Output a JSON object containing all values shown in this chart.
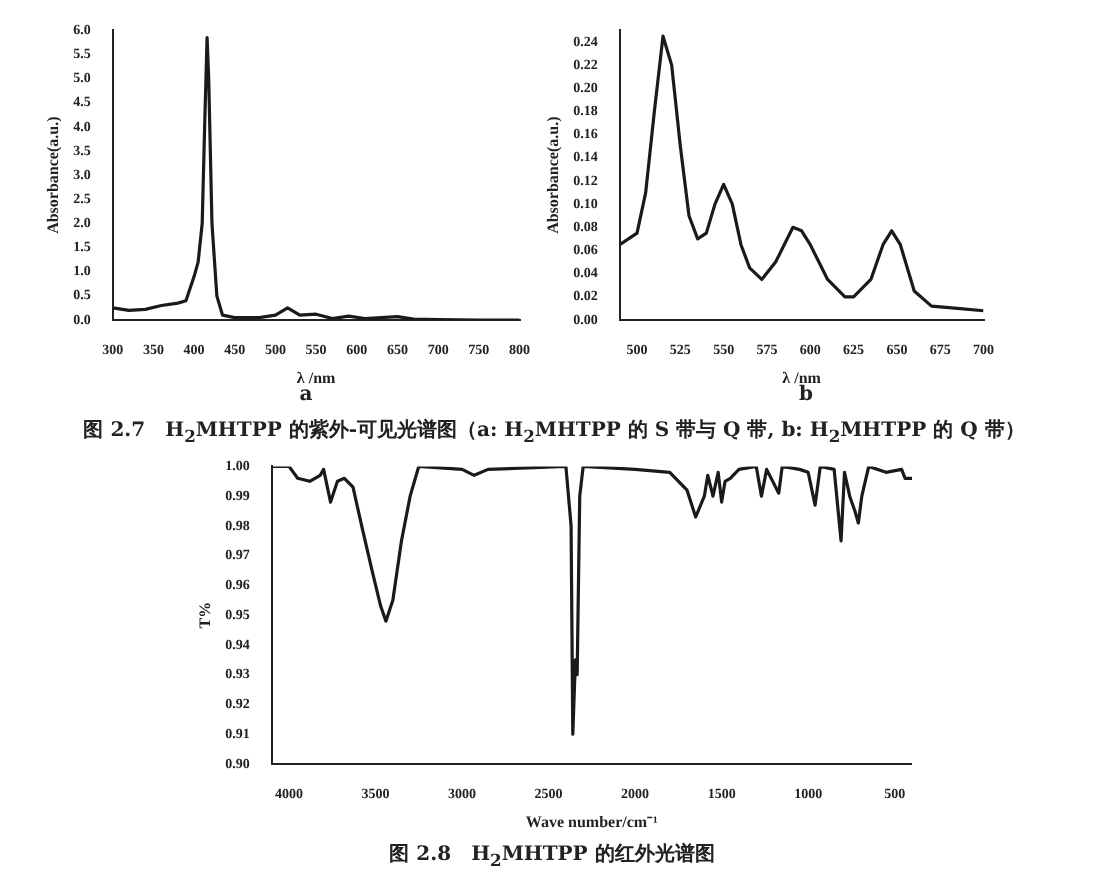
{
  "chart_data": [
    {
      "type": "line",
      "xlabel": "λ /nm",
      "ylabel": "Absorbance(a.u.)",
      "color": "#1a1a1a",
      "x": [
        300,
        320,
        340,
        360,
        380,
        390,
        400,
        405,
        410,
        413,
        416,
        418,
        422,
        428,
        435,
        450,
        480,
        500,
        515,
        530,
        550,
        570,
        590,
        610,
        650,
        670,
        700,
        750,
        800
      ],
      "values": [
        0.25,
        0.2,
        0.22,
        0.3,
        0.35,
        0.4,
        0.9,
        1.2,
        2.0,
        4.0,
        5.85,
        5.0,
        2.0,
        0.5,
        0.1,
        0.05,
        0.05,
        0.1,
        0.25,
        0.1,
        0.12,
        0.03,
        0.08,
        0.03,
        0.07,
        0.02,
        0.01,
        0.0,
        0.0
      ],
      "xlim": [
        300,
        800
      ],
      "ylim": [
        0,
        6
      ],
      "xticks": [
        300,
        350,
        400,
        450,
        500,
        550,
        600,
        650,
        700,
        750,
        800
      ],
      "yticks": [
        {
          "value": 0,
          "label": "0.0"
        },
        {
          "value": 0.5,
          "label": "0.5"
        },
        {
          "value": 1,
          "label": "1.0"
        },
        {
          "value": 1.5,
          "label": "1.5"
        },
        {
          "value": 2,
          "label": "2.0"
        },
        {
          "value": 2.5,
          "label": "2.5"
        },
        {
          "value": 3,
          "label": "3.0"
        },
        {
          "value": 3.5,
          "label": "3.5"
        },
        {
          "value": 4,
          "label": "4.0"
        },
        {
          "value": 4.5,
          "label": "4.5"
        },
        {
          "value": 5,
          "label": "5.0"
        },
        {
          "value": 5.5,
          "label": "5.5"
        },
        {
          "value": 6,
          "label": "6.0"
        }
      ],
      "annotations": [
        "a",
        "图 2.7　H$_{2}$MHTPP 的紫外-可见光谱图（a: H$_{2}$MHTPP 的 S 带与 Q 带, b: H$_{2}$MHTPP 的 Q 带）"
      ]
    },
    {
      "type": "line",
      "xlabel": "λ /nm",
      "ylabel": "Absorbance(a.u.)",
      "color": "#1a1a1a",
      "x": [
        490,
        500,
        505,
        510,
        515,
        520,
        525,
        530,
        535,
        540,
        545,
        550,
        555,
        560,
        565,
        572,
        580,
        590,
        595,
        600,
        610,
        620,
        625,
        635,
        642,
        647,
        652,
        660,
        670,
        685,
        700
      ],
      "values": [
        0.065,
        0.075,
        0.11,
        0.18,
        0.245,
        0.22,
        0.15,
        0.09,
        0.07,
        0.075,
        0.1,
        0.117,
        0.1,
        0.065,
        0.045,
        0.035,
        0.05,
        0.08,
        0.077,
        0.065,
        0.035,
        0.02,
        0.02,
        0.035,
        0.065,
        0.077,
        0.065,
        0.025,
        0.012,
        0.01,
        0.008
      ],
      "xlim": [
        490,
        700
      ],
      "ylim": [
        0,
        0.25
      ],
      "xticks": [
        500,
        525,
        550,
        575,
        600,
        625,
        650,
        675,
        700
      ],
      "yticks": [
        {
          "value": 0,
          "label": "0.00"
        },
        {
          "value": 0.02,
          "label": "0.02"
        },
        {
          "value": 0.04,
          "label": "0.04"
        },
        {
          "value": 0.06,
          "label": "0.06"
        },
        {
          "value": 0.08,
          "label": "0.08"
        },
        {
          "value": 0.1,
          "label": "0.10"
        },
        {
          "value": 0.12,
          "label": "0.12"
        },
        {
          "value": 0.14,
          "label": "0.14"
        },
        {
          "value": 0.16,
          "label": "0.16"
        },
        {
          "value": 0.18,
          "label": "0.18"
        },
        {
          "value": 0.2,
          "label": "0.20"
        },
        {
          "value": 0.22,
          "label": "0.22"
        },
        {
          "value": 0.24,
          "label": "0.24"
        }
      ],
      "annotations": [
        "b"
      ]
    },
    {
      "type": "line",
      "xlabel": "Wave number/cm⁻¹",
      "ylabel": "T%",
      "color": "#1a1a1a",
      "x": [
        4100,
        4000,
        3950,
        3880,
        3820,
        3800,
        3760,
        3720,
        3680,
        3630,
        3580,
        3520,
        3470,
        3440,
        3400,
        3350,
        3300,
        3250,
        3000,
        2930,
        2850,
        2400,
        2370,
        2360,
        2345,
        2335,
        2320,
        2300,
        2000,
        1800,
        1700,
        1650,
        1600,
        1580,
        1550,
        1520,
        1500,
        1480,
        1450,
        1400,
        1300,
        1270,
        1240,
        1170,
        1150,
        1050,
        1000,
        960,
        930,
        850,
        810,
        790,
        760,
        730,
        710,
        690,
        650,
        550,
        460,
        440,
        400
      ],
      "values": [
        1.0,
        1.0,
        0.996,
        0.995,
        0.997,
        0.999,
        0.988,
        0.995,
        0.996,
        0.993,
        0.98,
        0.965,
        0.953,
        0.948,
        0.955,
        0.975,
        0.99,
        1.0,
        0.999,
        0.997,
        0.999,
        1.0,
        0.98,
        0.91,
        0.935,
        0.93,
        0.99,
        1.0,
        0.999,
        0.998,
        0.992,
        0.983,
        0.99,
        0.997,
        0.99,
        0.998,
        0.988,
        0.995,
        0.996,
        0.999,
        1.0,
        0.99,
        0.999,
        0.991,
        1.0,
        0.999,
        0.998,
        0.987,
        1.0,
        0.999,
        0.975,
        0.998,
        0.99,
        0.985,
        0.981,
        0.99,
        1.0,
        0.998,
        0.999,
        0.996,
        0.996
      ],
      "xlim": [
        4100,
        400
      ],
      "ylim": [
        0.9,
        1.0
      ],
      "xticks": [
        4000,
        3500,
        3000,
        2500,
        2000,
        1500,
        1000,
        500
      ],
      "yticks": [
        {
          "value": 0.9,
          "label": "0.90"
        },
        {
          "value": 0.91,
          "label": "0.91"
        },
        {
          "value": 0.92,
          "label": "0.92"
        },
        {
          "value": 0.93,
          "label": "0.93"
        },
        {
          "value": 0.94,
          "label": "0.94"
        },
        {
          "value": 0.95,
          "label": "0.95"
        },
        {
          "value": 0.96,
          "label": "0.96"
        },
        {
          "value": 0.97,
          "label": "0.97"
        },
        {
          "value": 0.98,
          "label": "0.98"
        },
        {
          "value": 0.99,
          "label": "0.99"
        },
        {
          "value": 1.0,
          "label": "1.00"
        }
      ],
      "annotations": [
        "图 2.8　H$_{2}$MHTPP 的红外光谱图"
      ]
    }
  ]
}
